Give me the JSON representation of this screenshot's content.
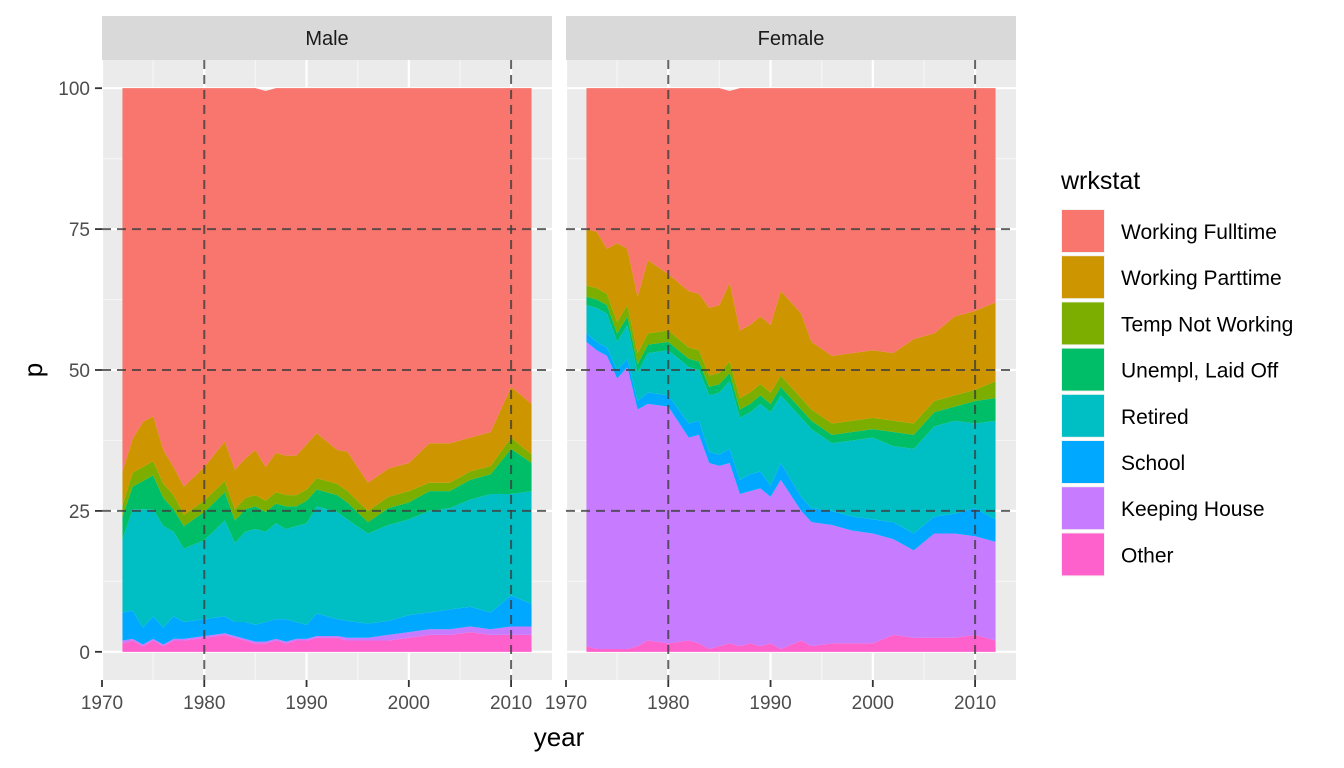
{
  "chart_data": {
    "type": "area",
    "stacked": true,
    "x_label": "year",
    "y_label": "p",
    "xlim": [
      1970,
      2014
    ],
    "ylim": [
      -5,
      105
    ],
    "x_ticks": [
      1970,
      1980,
      1990,
      2000,
      2010
    ],
    "y_ticks": [
      0,
      25,
      50,
      75,
      100
    ],
    "x_tick_labels": [
      "1970",
      "1980",
      "1990",
      "2000",
      "2010"
    ],
    "y_tick_labels": [
      "0",
      "25",
      "50",
      "75",
      "100"
    ],
    "reference_lines": {
      "vertical": [
        1980,
        2010
      ],
      "horizontal": [
        25,
        50,
        75
      ],
      "style": "dashed"
    },
    "legend": {
      "title": "wrkstat",
      "position": "right"
    },
    "categories": [
      "Working Fulltime",
      "Working Parttime",
      "Temp Not Working",
      "Unempl, Laid Off",
      "Retired",
      "School",
      "Keeping House",
      "Other"
    ],
    "colors": [
      "#F8766D",
      "#CD9600",
      "#7CAE00",
      "#00BE67",
      "#00BFC4",
      "#00A9FF",
      "#C77CFF",
      "#FF61CC"
    ],
    "panels": [
      {
        "label": "Male",
        "years": [
          1972,
          1973,
          1974,
          1975,
          1976,
          1977,
          1978,
          1980,
          1982,
          1983,
          1984,
          1985,
          1986,
          1987,
          1988,
          1989,
          1990,
          1991,
          1993,
          1994,
          1996,
          1998,
          2000,
          2002,
          2004,
          2006,
          2008,
          2010,
          2012
        ],
        "series": [
          {
            "name": "Other",
            "values": [
              1.5,
              2,
              1,
              2,
              1,
              2,
              2,
              2.5,
              3,
              2.5,
              2,
              1.5,
              1.5,
              2,
              1.5,
              2,
              2,
              2.5,
              2.5,
              2,
              2,
              2,
              2.5,
              3,
              3,
              3.5,
              3,
              3,
              3
            ]
          },
          {
            "name": "Keeping House",
            "values": [
              0.5,
              0.3,
              0.3,
              0.3,
              0.3,
              0.3,
              0.3,
              0.3,
              0.3,
              0.3,
              0.3,
              0.3,
              0.3,
              0.3,
              0.3,
              0.3,
              0.3,
              0.3,
              0.3,
              0.5,
              0.5,
              1,
              1,
              1,
              1,
              1,
              1,
              1.5,
              1.5
            ]
          },
          {
            "name": "School",
            "values": [
              5,
              5,
              3,
              4,
              3,
              4,
              3,
              3,
              3,
              2.5,
              3,
              3,
              3.5,
              3.5,
              4,
              3,
              2.5,
              4,
              3,
              3,
              2.5,
              2.5,
              3,
              3,
              3.5,
              3.5,
              3,
              5.5,
              4
            ]
          },
          {
            "name": "Retired",
            "values": [
              13,
              18,
              21,
              19,
              18,
              15,
              13,
              14,
              17,
              14,
              16,
              17,
              16,
              17,
              16,
              17,
              18,
              19,
              19,
              18,
              16,
              17,
              17,
              18,
              18,
              19,
              21,
              18,
              20
            ]
          },
          {
            "name": "Unempl, Laid Off",
            "values": [
              4,
              4,
              5,
              6,
              5,
              4,
              4,
              5,
              5,
              4,
              4,
              4,
              3.5,
              3.5,
              4,
              3.5,
              4,
              3,
              3,
              3,
              2,
              3,
              3,
              3.5,
              3,
              3.5,
              3.5,
              8,
              5
            ]
          },
          {
            "name": "Temp Not Working",
            "values": [
              2,
              2.5,
              2.5,
              2.5,
              2.5,
              2.5,
              2,
              2,
              2,
              2,
              2,
              2,
              2,
              2,
              2,
              2,
              2,
              2,
              2,
              2,
              2,
              2,
              2,
              1.5,
              1.5,
              1.5,
              1.5,
              2,
              1.5
            ]
          },
          {
            "name": "Working Parttime",
            "values": [
              6,
              6,
              8,
              8,
              6,
              5,
              5,
              6,
              7,
              7,
              7,
              8,
              6,
              7,
              7,
              7,
              8,
              8,
              6,
              7,
              5,
              5,
              5,
              7,
              7,
              6,
              6,
              9,
              9
            ]
          },
          {
            "name": "Working Fulltime",
            "values": [
              68,
              62.2,
              59.2,
              58.2,
              64.2,
              67.2,
              70.7,
              67.2,
              62.7,
              67.7,
              65.7,
              64.2,
              66.7,
              64.7,
              65.2,
              65.2,
              63.2,
              61.2,
              64.2,
              64.5,
              70,
              67.5,
              66.5,
              63,
              63,
              62,
              61,
              53,
              56
            ]
          }
        ]
      },
      {
        "label": "Female",
        "years": [
          1972,
          1973,
          1974,
          1975,
          1976,
          1977,
          1978,
          1980,
          1982,
          1983,
          1984,
          1985,
          1986,
          1987,
          1988,
          1989,
          1990,
          1991,
          1993,
          1994,
          1996,
          1998,
          2000,
          2002,
          2004,
          2006,
          2008,
          2010,
          2012
        ],
        "series": [
          {
            "name": "Other",
            "values": [
              1,
              0.5,
              0.5,
              0.5,
              0.5,
              1,
              2,
              1.5,
              2,
              1.5,
              0.5,
              1,
              1.5,
              1,
              1.5,
              1,
              1.5,
              0.5,
              2,
              1,
              1.5,
              1.5,
              1.5,
              3,
              2.5,
              2.5,
              2.5,
              3,
              2
            ]
          },
          {
            "name": "Keeping House",
            "values": [
              54,
              53,
              52,
              48,
              50,
              42,
              42,
              42,
              36,
              37,
              33,
              32,
              32,
              27,
              27,
              28,
              26,
              30,
              23,
              22,
              21,
              20,
              19.5,
              17,
              15.5,
              18.5,
              18.5,
              17.5,
              17.5
            ]
          },
          {
            "name": "School",
            "values": [
              1.5,
              1.5,
              1.5,
              1.5,
              1.5,
              1.5,
              2,
              2,
              2.5,
              2.5,
              2,
              2,
              2.5,
              2.5,
              3,
              3,
              2,
              3,
              2.5,
              2.5,
              2.5,
              2.5,
              2.5,
              3,
              3,
              3,
              3.5,
              5,
              4
            ]
          },
          {
            "name": "Retired",
            "values": [
              5,
              6,
              6,
              5,
              6,
              5,
              7,
              8,
              10,
              9,
              10,
              11,
              12,
              11,
              11,
              12,
              13,
              12,
              14,
              14,
              12,
              13.5,
              14.5,
              13.5,
              15,
              16,
              16.5,
              15,
              17.5
            ]
          },
          {
            "name": "Unempl, Laid Off",
            "values": [
              1.5,
              1.5,
              1.5,
              1.5,
              1.5,
              1.5,
              1.5,
              1.5,
              1.5,
              1.5,
              1.5,
              1.5,
              1.5,
              1.5,
              1.5,
              1.5,
              1.5,
              1.5,
              1.5,
              1.5,
              1.5,
              1.5,
              1.5,
              2.5,
              2.5,
              2.5,
              2.5,
              4,
              4
            ]
          },
          {
            "name": "Temp Not Working",
            "values": [
              2,
              2,
              2,
              2,
              2,
              2,
              2,
              2,
              2,
              2,
              2,
              2,
              2,
              2,
              2,
              2,
              2,
              2,
              2,
              2,
              2,
              2,
              2,
              2,
              2,
              2,
              2,
              2,
              3
            ]
          },
          {
            "name": "Working Parttime",
            "values": [
              10,
              10,
              8,
              14,
              10,
              10,
              13,
              10,
              10,
              10,
              12,
              12,
              14,
              12,
              12,
              12,
              12,
              15,
              15,
              12,
              12,
              12,
              12,
              12,
              15,
              12,
              14,
              14,
              14
            ]
          },
          {
            "name": "Working Fulltime",
            "values": [
              25,
              25.5,
              28.5,
              27.5,
              28.5,
              37,
              30.5,
              33,
              36,
              36.5,
              39,
              38.5,
              34,
              43,
              42,
              40.5,
              42,
              36,
              40,
              45,
              47.5,
              47,
              46.5,
              47,
              44.5,
              43.5,
              40.5,
              39.5,
              38
            ]
          }
        ]
      }
    ]
  }
}
